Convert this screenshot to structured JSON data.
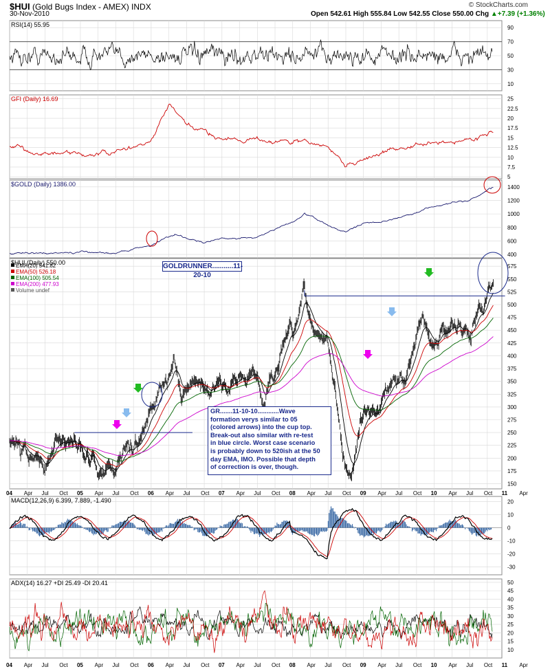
{
  "header": {
    "symbol": "$HUI",
    "name": "(Gold Bugs Index - AMEX) INDX",
    "date": "30-Nov-2010",
    "source": "© StockCharts.com",
    "open_label": "Open",
    "open": "542.61",
    "high_label": "High",
    "high": "555.84",
    "low_label": "Low",
    "low": "542.55",
    "close_label": "Close",
    "close": "550.00",
    "chg_label": "Chg",
    "chg": "+7.39 (+1.36%)",
    "chg_arrow": "up-arrow-icon"
  },
  "annotations": {
    "title": "GOLDRUNNER...........11-20-10",
    "box_lines": [
      "GR.......11-10-10............Wave",
      "formation verys similar to 05",
      "(colored arrows) into the cup top.",
      "Break-out also similar with re-test",
      "in blue circle.  Worst case scenario",
      "is probably down to 520ish at the 50",
      "day EMA, IMO.  Possible that depth",
      "of correction is over, though."
    ]
  },
  "chart_data": [
    {
      "type": "line",
      "title": "RSI(14) 55.95",
      "yticks": [
        10,
        30,
        50,
        70,
        90
      ],
      "ylim": [
        0,
        100
      ],
      "reference_lines": [
        30,
        70
      ],
      "last_value": 55.95,
      "color": "#000000"
    },
    {
      "type": "line",
      "title": "GFI (Daily) 16.69",
      "yticks": [
        5.0,
        7.5,
        10.0,
        12.5,
        15.0,
        17.5,
        20.0,
        22.5,
        25.0
      ],
      "ylim": [
        4.5,
        26
      ],
      "color": "#cc0000",
      "x": [
        "04-Jan",
        "04-Jul",
        "05-Jan",
        "05-Jul",
        "06-Jan",
        "06-Apr",
        "06-Jul",
        "07-Jan",
        "07-Jul",
        "08-Jan",
        "08-Apr",
        "08-Jul",
        "08-Oct",
        "09-Jan",
        "09-Jul",
        "10-Jan",
        "10-Jul",
        "10-Nov"
      ],
      "values": [
        12.5,
        11.0,
        10.5,
        11.2,
        14.0,
        23.5,
        18.0,
        15.0,
        14.5,
        14.0,
        13.8,
        12.5,
        8.0,
        9.5,
        12.5,
        13.5,
        14.5,
        16.69
      ]
    },
    {
      "type": "line",
      "title": "$GOLD (Daily) 1386.00",
      "yticks": [
        400,
        600,
        800,
        1000,
        1200,
        1400
      ],
      "ylim": [
        350,
        1500
      ],
      "color": "#1a1a6e",
      "x": [
        "04-Jan",
        "05-Jan",
        "05-Jul",
        "06-Jan",
        "06-May",
        "06-Oct",
        "07-Jan",
        "07-Jul",
        "08-Jan",
        "08-Mar",
        "08-Oct",
        "09-Jan",
        "09-Jul",
        "10-Jan",
        "10-Jul",
        "10-Nov"
      ],
      "values": [
        410,
        430,
        425,
        540,
        700,
        580,
        630,
        660,
        880,
        1000,
        720,
        870,
        930,
        1120,
        1200,
        1386
      ]
    },
    {
      "type": "line",
      "title": "$HUI (Daily) 550.00",
      "legend": [
        {
          "name": "EMA(20) 541.82",
          "color": "#000000"
        },
        {
          "name": "EMA(50) 526.18",
          "color": "#cc0000"
        },
        {
          "name": "EMA(100) 505.54",
          "color": "#006400"
        },
        {
          "name": "EMA(200) 477.93",
          "color": "#cc00cc"
        },
        {
          "name": "Volume undef",
          "color": "#555555"
        }
      ],
      "yticks": [
        150,
        175,
        200,
        225,
        250,
        275,
        300,
        325,
        350,
        375,
        400,
        425,
        450,
        475,
        500,
        525,
        550,
        575
      ],
      "ylim": [
        140,
        590
      ],
      "xtick_labels": [
        "04",
        "Apr",
        "Jul",
        "Oct",
        "05",
        "Apr",
        "Jul",
        "Oct",
        "06",
        "Apr",
        "Jul",
        "Oct",
        "07",
        "Apr",
        "Jul",
        "Oct",
        "08",
        "Apr",
        "Jul",
        "Oct",
        "09",
        "Apr",
        "Jul",
        "Oct",
        "10",
        "Apr",
        "Jul",
        "Oct",
        "11",
        "Apr"
      ],
      "x": [
        "04-Jan",
        "04-Mar",
        "04-May",
        "04-Jul",
        "04-Sep",
        "04-Dec",
        "05-Feb",
        "05-May",
        "05-Jul",
        "05-Oct",
        "06-Jan",
        "06-May",
        "06-Jun",
        "06-Aug",
        "06-Nov",
        "07-Jan",
        "07-Apr",
        "07-Jul",
        "07-Aug",
        "07-Nov",
        "08-Jan",
        "08-Mar",
        "08-May",
        "08-Jul",
        "08-Aug",
        "08-Oct",
        "08-Nov",
        "09-Jan",
        "09-Mar",
        "09-Jun",
        "09-Aug",
        "09-Nov",
        "10-Jan",
        "10-Mar",
        "10-May",
        "10-Jul",
        "10-Aug",
        "10-Oct",
        "10-Nov"
      ],
      "values": [
        235,
        215,
        195,
        185,
        225,
        240,
        205,
        170,
        195,
        225,
        300,
        385,
        310,
        350,
        330,
        340,
        360,
        355,
        300,
        405,
        440,
        510,
        440,
        430,
        340,
        180,
        155,
        300,
        280,
        370,
        340,
        480,
        415,
        450,
        470,
        440,
        460,
        530,
        550
      ],
      "trend_lines": [
        {
          "from": [
            "04-Dec",
            250
          ],
          "to": [
            "06-Aug",
            250
          ]
        },
        {
          "from": [
            "08-Mar",
            517
          ],
          "to": [
            "11-Jan",
            517
          ]
        }
      ]
    },
    {
      "type": "line",
      "title": "MACD(12,26,9) 6.399, 7.889, -1.490",
      "yticks": [
        -30,
        -20,
        -10,
        0,
        10,
        20
      ],
      "ylim": [
        -36,
        24
      ],
      "series": [
        {
          "name": "MACD(12,26,9)",
          "color": "#000000"
        },
        {
          "name": "Signal",
          "color": "#cc0000"
        },
        {
          "name": "Histogram",
          "color": "#2b5e9e"
        }
      ],
      "last_values": [
        6.399,
        7.889,
        -1.49
      ]
    },
    {
      "type": "line",
      "title": "ADX(14) 16.27 +DI 25.49 -DI 20.41",
      "yticks": [
        10,
        15,
        20,
        25,
        30,
        35,
        40,
        45,
        50
      ],
      "ylim": [
        5,
        52
      ],
      "series": [
        {
          "name": "ADX(14) 16.27",
          "color": "#000000"
        },
        {
          "name": "+DI 25.49",
          "color": "#006400"
        },
        {
          "name": "-DI 20.41",
          "color": "#cc0000"
        }
      ]
    }
  ]
}
